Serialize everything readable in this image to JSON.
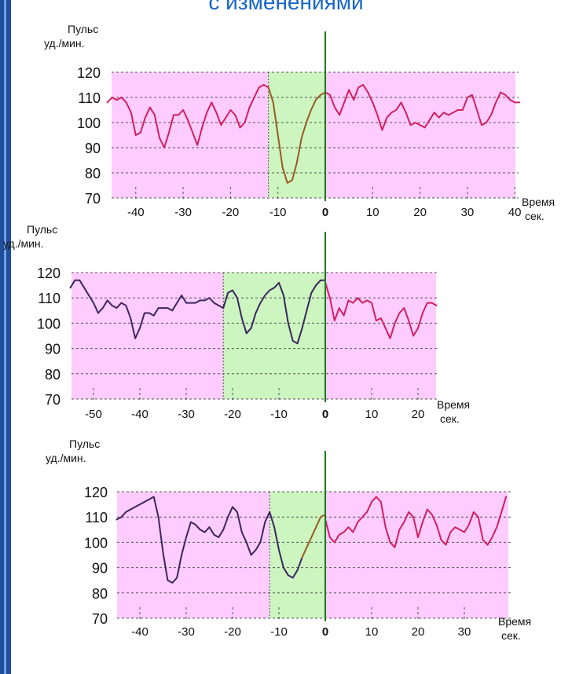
{
  "header": {
    "title": "с изменениями"
  },
  "colors": {
    "frame": "#1f4f9c",
    "title": "#1566c8",
    "bg_pink": "#ffccff",
    "bg_green": "#ccf5c0",
    "line_pink": "#d0205f",
    "line_dark": "#3a2660",
    "line_green": "#1c8a2a",
    "line_olive": "#9a5a20",
    "zero_line": "#1c7a1c"
  },
  "chart_data": [
    {
      "type": "line",
      "ylabel": "Пульс уд./мин.",
      "xlabel": "Время сек.",
      "ylim": [
        70,
        120
      ],
      "xlim": [
        -46,
        41
      ],
      "xticks": [
        -40,
        -30,
        -20,
        -10,
        0,
        10,
        20,
        30,
        40
      ],
      "yticks": [
        120,
        110,
        100,
        90,
        80,
        70
      ],
      "green_zone": [
        -12,
        0
      ],
      "series": [
        {
          "color": "line_pink",
          "x": [
            -46,
            -45,
            -44,
            -43,
            -42,
            -41,
            -40,
            -39,
            -38,
            -37,
            -36,
            -35,
            -34,
            -33,
            -32,
            -31,
            -30,
            -29,
            -28,
            -27,
            -26,
            -25,
            -24,
            -23,
            -22,
            -21,
            -20,
            -19,
            -18,
            -17,
            -16,
            -15,
            -14,
            -13,
            -12
          ],
          "y": [
            108,
            110,
            109,
            110,
            108,
            104,
            95,
            96,
            102,
            106,
            103,
            94,
            90,
            96,
            103,
            103,
            105,
            101,
            96,
            91,
            98,
            104,
            108,
            104,
            99,
            102,
            105,
            103,
            98,
            100,
            106,
            110,
            114,
            115,
            114
          ]
        },
        {
          "color": "line_olive",
          "x": [
            -12,
            -11,
            -10,
            -9,
            -8,
            -7,
            -6,
            -5,
            -4,
            -3,
            -2,
            -1,
            0
          ],
          "y": [
            114,
            108,
            95,
            82,
            76,
            77,
            84,
            94,
            100,
            105,
            109,
            111,
            112
          ]
        },
        {
          "color": "line_pink",
          "x": [
            0,
            1,
            2,
            3,
            4,
            5,
            6,
            7,
            8,
            9,
            10,
            11,
            12,
            13,
            14,
            15,
            16,
            17,
            18,
            19,
            20,
            21,
            22,
            23,
            24,
            25,
            26,
            27,
            28,
            29,
            30,
            31,
            32,
            33,
            34,
            35,
            36,
            37,
            38,
            39,
            40,
            41
          ],
          "y": [
            112,
            111,
            106,
            103,
            108,
            113,
            109,
            114,
            115,
            112,
            108,
            103,
            97,
            102,
            104,
            105,
            108,
            104,
            99,
            100,
            99,
            98,
            101,
            104,
            102,
            104,
            103,
            104,
            105,
            105,
            110,
            111,
            105,
            99,
            100,
            103,
            108,
            112,
            111,
            109,
            108,
            108
          ]
        }
      ]
    },
    {
      "type": "line",
      "ylabel": "Пульс уд./мин.",
      "xlabel": "Время сек.",
      "ylim": [
        70,
        120
      ],
      "xlim": [
        -55,
        24
      ],
      "xticks": [
        -50,
        -40,
        -30,
        -20,
        -10,
        0,
        10,
        20
      ],
      "yticks": [
        120,
        110,
        100,
        90,
        80,
        70
      ],
      "green_zone": [
        -22,
        0
      ],
      "series": [
        {
          "color": "line_dark",
          "x": [
            -55,
            -54,
            -53,
            -52,
            -51,
            -50,
            -49,
            -48,
            -47,
            -46,
            -45,
            -44,
            -43,
            -42,
            -41,
            -40,
            -39,
            -38,
            -37,
            -36,
            -35,
            -34,
            -33,
            -32,
            -31,
            -30,
            -29,
            -28,
            -27,
            -26,
            -25,
            -24,
            -23,
            -22
          ],
          "y": [
            114,
            117,
            117,
            114,
            111,
            108,
            104,
            106,
            109,
            107,
            106,
            108,
            107,
            102,
            94,
            98,
            104,
            104,
            103,
            106,
            106,
            106,
            105,
            108,
            111,
            108,
            108,
            108,
            109,
            109,
            110,
            108,
            107,
            106
          ]
        },
        {
          "color": "line_dark",
          "x": [
            -22,
            -21,
            -20,
            -19,
            -18,
            -17,
            -16,
            -15,
            -14,
            -13,
            -12,
            -11,
            -10,
            -9,
            -8,
            -7,
            -6,
            -5,
            -4,
            -3,
            -2,
            -1,
            0
          ],
          "y": [
            106,
            112,
            113,
            110,
            102,
            96,
            98,
            104,
            108,
            111,
            113,
            114,
            116,
            111,
            100,
            93,
            92,
            98,
            105,
            112,
            115,
            117,
            117
          ]
        },
        {
          "color": "line_pink",
          "x": [
            0,
            1,
            2,
            3,
            4,
            5,
            6,
            7,
            8,
            9,
            10,
            11,
            12,
            13,
            14,
            15,
            16,
            17,
            18,
            19,
            20,
            21,
            22,
            23,
            24
          ],
          "y": [
            116,
            110,
            101,
            106,
            103,
            109,
            108,
            110,
            108,
            109,
            108,
            101,
            102,
            98,
            94,
            100,
            104,
            106,
            101,
            95,
            98,
            104,
            108,
            108,
            107
          ]
        }
      ]
    },
    {
      "type": "line",
      "ylabel": "Пульс уд./мин.",
      "xlabel": "Время сек.",
      "ylim": [
        70,
        120
      ],
      "xlim": [
        -45,
        39
      ],
      "xticks": [
        -40,
        -30,
        -20,
        -10,
        0,
        10,
        20,
        30
      ],
      "yticks": [
        120,
        110,
        100,
        90,
        80,
        70
      ],
      "green_zone": [
        -12,
        0
      ],
      "series": [
        {
          "color": "line_dark",
          "x": [
            -45,
            -44,
            -43,
            -42,
            -41,
            -40,
            -39,
            -38,
            -37,
            -36,
            -35,
            -34,
            -33,
            -32,
            -31,
            -30,
            -29,
            -28,
            -27,
            -26,
            -25,
            -24,
            -23,
            -22,
            -21,
            -20,
            -19,
            -18,
            -17,
            -16,
            -15,
            -14,
            -13,
            -12
          ],
          "y": [
            109,
            110,
            112,
            113,
            114,
            115,
            116,
            117,
            118,
            110,
            96,
            85,
            84,
            86,
            95,
            102,
            108,
            107,
            105,
            104,
            106,
            103,
            102,
            105,
            110,
            114,
            112,
            104,
            100,
            95,
            97,
            100,
            108,
            112
          ]
        },
        {
          "color": "line_dark",
          "x": [
            -12,
            -11,
            -10,
            -9,
            -8,
            -7,
            -6,
            -5
          ],
          "y": [
            112,
            106,
            97,
            90,
            87,
            86,
            89,
            94
          ]
        },
        {
          "color": "line_olive",
          "x": [
            -5,
            -4,
            -3,
            -2,
            -1,
            0
          ],
          "y": [
            94,
            98,
            102,
            106,
            110,
            111
          ]
        },
        {
          "color": "line_pink",
          "x": [
            0,
            1,
            2,
            3,
            4,
            5,
            6,
            7,
            8,
            9,
            10,
            11,
            12,
            13,
            14,
            15,
            16,
            17,
            18,
            19,
            20,
            21,
            22,
            23,
            24,
            25,
            26,
            27,
            28,
            29,
            30,
            31,
            32,
            33,
            34,
            35,
            36,
            37,
            38,
            39
          ],
          "y": [
            109,
            102,
            100,
            103,
            104,
            106,
            104,
            108,
            110,
            112,
            116,
            118,
            116,
            106,
            100,
            98,
            105,
            108,
            112,
            110,
            102,
            108,
            113,
            111,
            107,
            101,
            99,
            104,
            106,
            105,
            104,
            107,
            112,
            110,
            101,
            99,
            102,
            106,
            112,
            118
          ]
        }
      ]
    }
  ]
}
